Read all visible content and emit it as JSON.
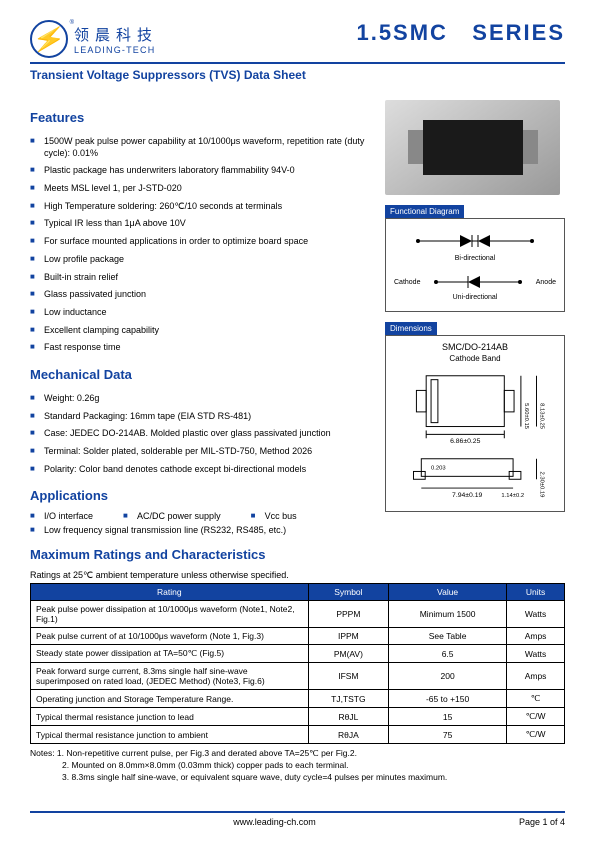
{
  "header": {
    "logo_cn": "领晨科技",
    "logo_en": "LEADING-TECH",
    "series": "1.5SMC",
    "series_suffix": "SERIES"
  },
  "subtitle": "Transient Voltage Suppressors (TVS) Data Sheet",
  "features_title": "Features",
  "features": [
    "1500W peak pulse power capability at 10/1000μs waveform, repetition rate (duty cycle): 0.01%",
    "Plastic package has underwriters laboratory flammability 94V-0",
    "Meets MSL level 1, per J-STD-020",
    "High Temperature soldering: 260℃/10 seconds at terminals",
    "Typical IR less than 1μA above 10V",
    "For surface mounted applications in order to optimize board space",
    "Low profile package",
    "Built-in strain relief",
    "Glass passivated junction",
    "Low inductance",
    "Excellent clamping capability",
    "Fast response time"
  ],
  "mech_title": "Mechanical Data",
  "mechanical": [
    "Weight: 0.26g",
    "Standard Packaging: 16mm tape (EIA STD RS-481)",
    "Case: JEDEC DO-214AB. Molded plastic over glass passivated junction",
    "Terminal: Solder plated, solderable per MIL-STD-750, Method 2026",
    "Polarity: Color band denotes cathode except bi-directional models"
  ],
  "app_title": "Applications",
  "applications": [
    "I/O interface",
    "AC/DC power supply",
    "Vcc bus",
    "Low frequency signal transmission line (RS232, RS485, etc.)"
  ],
  "ratings_title": "Maximum Ratings and Characteristics",
  "ratings_note": "Ratings at 25℃  ambient temperature unless otherwise specified.",
  "ratings_headers": [
    "Rating",
    "Symbol",
    "Value",
    "Units"
  ],
  "ratings_rows": [
    [
      "Peak pulse power dissipation at 10/1000μs waveform (Note1, Note2, Fig.1)",
      "PPPM",
      "Minimum 1500",
      "Watts"
    ],
    [
      "Peak pulse current of at 10/1000μs waveform (Note 1, Fig.3)",
      "IPPM",
      "See Table",
      "Amps"
    ],
    [
      "Steady state power dissipation at TA=50℃ (Fig.5)",
      "PM(AV)",
      "6.5",
      "Watts"
    ],
    [
      "Peak forward surge current, 8.3ms single half sine-wave superimposed on rated load, (JEDEC Method) (Note3, Fig.6)",
      "IFSM",
      "200",
      "Amps"
    ],
    [
      "Operating junction and Storage Temperature Range.",
      "TJ,TSTG",
      "-65 to +150",
      "℃"
    ],
    [
      "Typical thermal resistance junction to lead",
      "RθJL",
      "15",
      "℃/W"
    ],
    [
      "Typical thermal resistance junction to ambient",
      "RθJA",
      "75",
      "℃/W"
    ]
  ],
  "notes": [
    "Notes: 1. Non-repetitive current pulse, per Fig.3 and derated above TA=25℃ per Fig.2.",
    "2. Mounted on 8.0mm×8.0mm (0.03mm thick) copper pads to each terminal.",
    "3. 8.3ms single half sine-wave, or equivalent square wave, duty cycle=4 pulses per minutes maximum."
  ],
  "diagram": {
    "panel_title": "Functional  Diagram",
    "bi_label": "Bi-directional",
    "uni_label": "Uni-directional",
    "cathode": "Cathode",
    "anode": "Anode"
  },
  "dimensions": {
    "panel_title": "Dimensions",
    "package": "SMC/DO-214AB",
    "cathode_band": "Cathode Band",
    "top_w": "6.86±0.25",
    "top_h1": "5.60±0.15",
    "top_h2": "8.13±0.25",
    "side_w": "7.94±0.19",
    "side_small": "1.14±0.2",
    "side_h": "2.30±0.19",
    "side_notch": "0.203"
  },
  "footer": {
    "url": "www.leading-ch.com",
    "page": "Page  1  of  4"
  },
  "colors": {
    "primary": "#1243a0",
    "accent_red": "#e03030"
  }
}
